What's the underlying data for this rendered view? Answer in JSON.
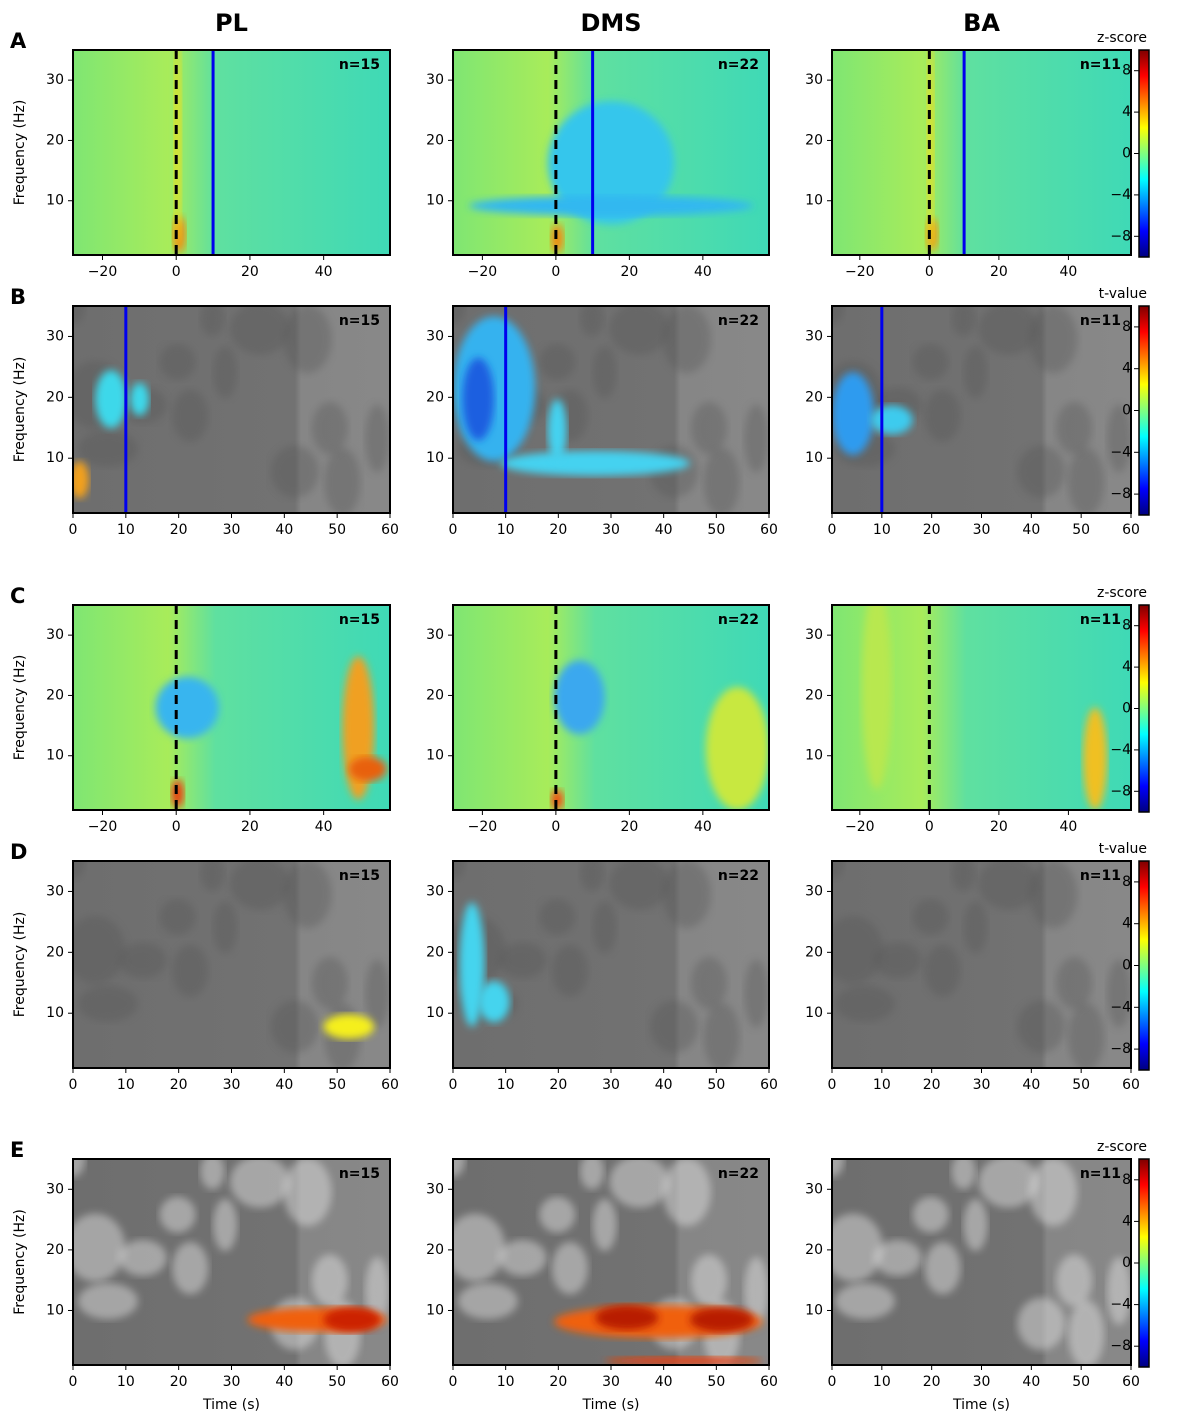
{
  "chart_data": [
    {
      "type": "heatmap",
      "title": "PL",
      "panel_label": "A",
      "annotation": "n=15",
      "annotation_color": "#000000",
      "cmap": "jet",
      "ylabel": "Frequency (Hz)",
      "xlim": [
        -28,
        58
      ],
      "xticks": [
        {
          "value": -20,
          "label": "−20"
        },
        0,
        20,
        40
      ],
      "ylim": [
        1,
        35
      ],
      "yticks": [
        10,
        20,
        30
      ],
      "vlines": [
        {
          "x": 0,
          "color": "#000000",
          "style": "dashed"
        },
        {
          "x": 10,
          "color": "#0000ee",
          "style": "solid"
        }
      ]
    },
    {
      "type": "heatmap",
      "title": "DMS",
      "annotation": "n=22",
      "annotation_color": "#000000",
      "cmap": "jet",
      "xlim": [
        -28,
        58
      ],
      "xticks": [
        {
          "value": -20,
          "label": "−20"
        },
        0,
        20,
        40
      ],
      "ylim": [
        1,
        35
      ],
      "yticks": [
        10,
        20,
        30
      ],
      "vlines": [
        {
          "x": 0,
          "color": "#000000",
          "style": "dashed"
        },
        {
          "x": 10,
          "color": "#0000ee",
          "style": "solid"
        }
      ]
    },
    {
      "type": "heatmap",
      "title": "BA",
      "annotation": "n=11",
      "annotation_color": "#000000",
      "cmap": "jet",
      "xlim": [
        -28,
        58
      ],
      "xticks": [
        {
          "value": -20,
          "label": "−20"
        },
        0,
        20,
        40
      ],
      "ylim": [
        1,
        35
      ],
      "yticks": [
        10,
        20,
        30
      ],
      "vlines": [
        {
          "x": 0,
          "color": "#000000",
          "style": "dashed"
        },
        {
          "x": 10,
          "color": "#0000ee",
          "style": "solid"
        }
      ],
      "colorbar": {
        "label": "z-score",
        "lim": [
          -10,
          10
        ],
        "ticks": [
          {
            "value": -8,
            "label": "−8"
          },
          {
            "value": -4,
            "label": "−4"
          },
          0,
          4,
          8
        ]
      }
    },
    {
      "type": "heatmap",
      "panel_label": "B",
      "annotation": "n=15",
      "annotation_color": "#ffffff",
      "cmap": "masked",
      "ylabel": "Frequency (Hz)",
      "xlim": [
        0,
        60
      ],
      "xticks": [
        0,
        10,
        20,
        30,
        40,
        50,
        60
      ],
      "ylim": [
        1,
        35
      ],
      "yticks": [
        10,
        20,
        30
      ],
      "vlines": [
        {
          "x": 10,
          "color": "#0000ee",
          "style": "solid"
        }
      ]
    },
    {
      "type": "heatmap",
      "annotation": "n=22",
      "annotation_color": "#ffffff",
      "cmap": "masked",
      "xlim": [
        0,
        60
      ],
      "xticks": [
        0,
        10,
        20,
        30,
        40,
        50,
        60
      ],
      "ylim": [
        1,
        35
      ],
      "yticks": [
        10,
        20,
        30
      ],
      "vlines": [
        {
          "x": 10,
          "color": "#0000ee",
          "style": "solid"
        }
      ]
    },
    {
      "type": "heatmap",
      "annotation": "n=11",
      "annotation_color": "#ffffff",
      "cmap": "masked",
      "xlim": [
        0,
        60
      ],
      "xticks": [
        0,
        10,
        20,
        30,
        40,
        50,
        60
      ],
      "ylim": [
        1,
        35
      ],
      "yticks": [
        10,
        20,
        30
      ],
      "vlines": [
        {
          "x": 10,
          "color": "#0000ee",
          "style": "solid"
        }
      ],
      "colorbar": {
        "label": "t-value",
        "lim": [
          -10,
          10
        ],
        "ticks": [
          {
            "value": -8,
            "label": "−8"
          },
          {
            "value": -4,
            "label": "−4"
          },
          0,
          4,
          8
        ]
      }
    },
    {
      "type": "heatmap",
      "panel_label": "C",
      "annotation": "n=15",
      "annotation_color": "#000000",
      "cmap": "jet",
      "ylabel": "Frequency (Hz)",
      "xlim": [
        -28,
        58
      ],
      "xticks": [
        {
          "value": -20,
          "label": "−20"
        },
        0,
        20,
        40
      ],
      "ylim": [
        1,
        35
      ],
      "yticks": [
        10,
        20,
        30
      ],
      "vlines": [
        {
          "x": 0,
          "color": "#000000",
          "style": "dashed"
        }
      ]
    },
    {
      "type": "heatmap",
      "annotation": "n=22",
      "annotation_color": "#000000",
      "cmap": "jet",
      "xlim": [
        -28,
        58
      ],
      "xticks": [
        {
          "value": -20,
          "label": "−20"
        },
        0,
        20,
        40
      ],
      "ylim": [
        1,
        35
      ],
      "yticks": [
        10,
        20,
        30
      ],
      "vlines": [
        {
          "x": 0,
          "color": "#000000",
          "style": "dashed"
        }
      ]
    },
    {
      "type": "heatmap",
      "annotation": "n=11",
      "annotation_color": "#000000",
      "cmap": "jet",
      "xlim": [
        -28,
        58
      ],
      "xticks": [
        {
          "value": -20,
          "label": "−20"
        },
        0,
        20,
        40
      ],
      "ylim": [
        1,
        35
      ],
      "yticks": [
        10,
        20,
        30
      ],
      "vlines": [
        {
          "x": 0,
          "color": "#000000",
          "style": "dashed"
        }
      ],
      "colorbar": {
        "label": "z-score",
        "lim": [
          -10,
          10
        ],
        "ticks": [
          {
            "value": -8,
            "label": "−8"
          },
          {
            "value": -4,
            "label": "−4"
          },
          0,
          4,
          8
        ]
      }
    },
    {
      "type": "heatmap",
      "panel_label": "D",
      "annotation": "n=15",
      "annotation_color": "#ffffff",
      "cmap": "masked",
      "ylabel": "Frequency (Hz)",
      "xlim": [
        0,
        60
      ],
      "xticks": [
        0,
        10,
        20,
        30,
        40,
        50,
        60
      ],
      "ylim": [
        1,
        35
      ],
      "yticks": [
        10,
        20,
        30
      ]
    },
    {
      "type": "heatmap",
      "annotation": "n=22",
      "annotation_color": "#ffffff",
      "cmap": "masked",
      "xlim": [
        0,
        60
      ],
      "xticks": [
        0,
        10,
        20,
        30,
        40,
        50,
        60
      ],
      "ylim": [
        1,
        35
      ],
      "yticks": [
        10,
        20,
        30
      ]
    },
    {
      "type": "heatmap",
      "annotation": "n=11",
      "annotation_color": "#ffffff",
      "cmap": "masked",
      "xlim": [
        0,
        60
      ],
      "xticks": [
        0,
        10,
        20,
        30,
        40,
        50,
        60
      ],
      "ylim": [
        1,
        35
      ],
      "yticks": [
        10,
        20,
        30
      ],
      "colorbar": {
        "label": "t-value",
        "lim": [
          -10,
          10
        ],
        "ticks": [
          {
            "value": -8,
            "label": "−8"
          },
          {
            "value": -4,
            "label": "−4"
          },
          0,
          4,
          8
        ]
      }
    },
    {
      "type": "heatmap",
      "panel_label": "E",
      "annotation": "n=15",
      "annotation_color": "#ffffff",
      "cmap": "masked",
      "ylabel": "Frequency (Hz)",
      "xlabel": "Time (s)",
      "xlim": [
        0,
        60
      ],
      "xticks": [
        0,
        10,
        20,
        30,
        40,
        50,
        60
      ],
      "ylim": [
        1,
        35
      ],
      "yticks": [
        10,
        20,
        30
      ]
    },
    {
      "type": "heatmap",
      "annotation": "n=22",
      "annotation_color": "#ffffff",
      "cmap": "masked",
      "xlabel": "Time (s)",
      "xlim": [
        0,
        60
      ],
      "xticks": [
        0,
        10,
        20,
        30,
        40,
        50,
        60
      ],
      "ylim": [
        1,
        35
      ],
      "yticks": [
        10,
        20,
        30
      ]
    },
    {
      "type": "heatmap",
      "annotation": "n=11",
      "annotation_color": "#ffffff",
      "cmap": "masked",
      "xlabel": "Time (s)",
      "xlim": [
        0,
        60
      ],
      "xticks": [
        0,
        10,
        20,
        30,
        40,
        50,
        60
      ],
      "ylim": [
        1,
        35
      ],
      "yticks": [
        10,
        20,
        30
      ],
      "colorbar": {
        "label": "z-score",
        "lim": [
          -10,
          10
        ],
        "ticks": [
          {
            "value": -8,
            "label": "−8"
          },
          {
            "value": -4,
            "label": "−4"
          },
          0,
          4,
          8
        ]
      }
    }
  ]
}
